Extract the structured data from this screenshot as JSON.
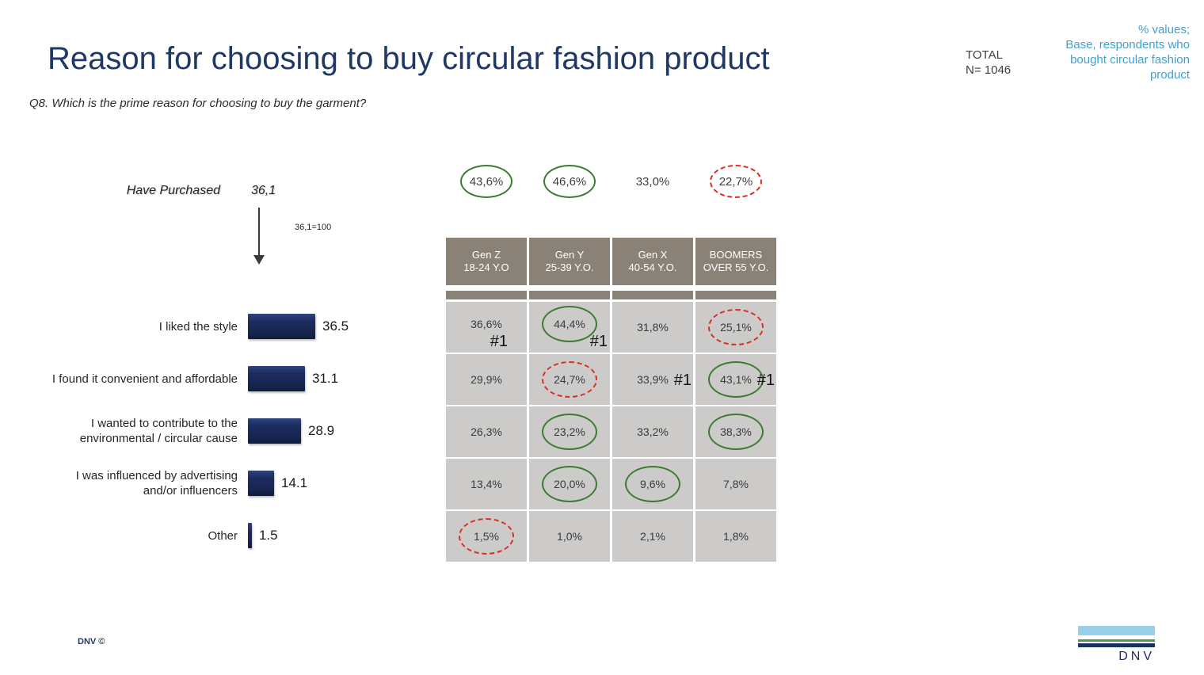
{
  "slide": {
    "title": "Reason for choosing to buy circular fashion product",
    "question": "Q8. Which is the prime reason for choosing to buy the garment?",
    "total_label": "TOTAL",
    "total_n": "N= 1046",
    "base_note": "% values;\nBase, respondents who bought circular fashion product",
    "footer_left": "DNV ©",
    "logo_text": "DNV"
  },
  "colors": {
    "title_navy": "#203864",
    "accent_blue": "#41a0d1",
    "bar_navy": "#1b2a5e",
    "table_header_bg": "#8a8177",
    "table_cell_bg": "#cccbc9",
    "highlight_green": "#3d7b33",
    "highlight_red": "#d93025",
    "logo_lightblue": "#99cfe8",
    "logo_green": "#4f9a4c",
    "logo_navy": "#1a2f62"
  },
  "chart_data": {
    "type": "bar",
    "title": "Reason for choosing to buy circular fashion product",
    "orientation": "horizontal",
    "xlim": [
      0,
      40
    ],
    "have_purchased": {
      "label": "Have Purchased",
      "value": "36,1",
      "note": "36,1=100"
    },
    "categories": [
      "I liked the style",
      "I found it convenient and affordable",
      "I wanted to contribute to the environmental / circular cause",
      "I was influenced by advertising and/or influencers",
      "Other"
    ],
    "values": [
      36.5,
      31.1,
      28.9,
      14.1,
      1.5
    ],
    "value_labels": [
      "36.5",
      "31.1",
      "28.9",
      "14.1",
      "1.5"
    ],
    "table": {
      "columns": [
        "Gen Z\n18-24 Y.O",
        "Gen Y\n25-39 Y.O.",
        "Gen X\n40-54 Y.O.",
        "BOOMERS\nOVER 55 Y.O."
      ],
      "have_purchased_cells": [
        {
          "value": "43,6%",
          "circle": "green"
        },
        {
          "value": "46,6%",
          "circle": "green"
        },
        {
          "value": "33,0%",
          "circle": "none"
        },
        {
          "value": "22,7%",
          "circle": "red"
        }
      ],
      "rows": [
        {
          "cells": [
            {
              "value": "36,6%",
              "circle": "none",
              "rank": "#1",
              "rank_pos": "bottom"
            },
            {
              "value": "44,4%",
              "circle": "green",
              "rank": "#1",
              "rank_pos": "bottom-right"
            },
            {
              "value": "31,8%",
              "circle": "none"
            },
            {
              "value": "25,1%",
              "circle": "red"
            }
          ]
        },
        {
          "cells": [
            {
              "value": "29,9%",
              "circle": "none"
            },
            {
              "value": "24,7%",
              "circle": "red"
            },
            {
              "value": "33,9%",
              "circle": "none",
              "rank": "#1",
              "rank_pos": "right"
            },
            {
              "value": "43,1%",
              "circle": "green",
              "rank": "#1",
              "rank_pos": "right"
            }
          ]
        },
        {
          "cells": [
            {
              "value": "26,3%",
              "circle": "none"
            },
            {
              "value": "23,2%",
              "circle": "green"
            },
            {
              "value": "33,2%",
              "circle": "none"
            },
            {
              "value": "38,3%",
              "circle": "green"
            }
          ]
        },
        {
          "cells": [
            {
              "value": "13,4%",
              "circle": "none"
            },
            {
              "value": "20,0%",
              "circle": "green"
            },
            {
              "value": "9,6%",
              "circle": "green"
            },
            {
              "value": "7,8%",
              "circle": "none"
            }
          ]
        },
        {
          "cells": [
            {
              "value": "1,5%",
              "circle": "red"
            },
            {
              "value": "1,0%",
              "circle": "none"
            },
            {
              "value": "2,1%",
              "circle": "none"
            },
            {
              "value": "1,8%",
              "circle": "none"
            }
          ]
        }
      ]
    }
  }
}
